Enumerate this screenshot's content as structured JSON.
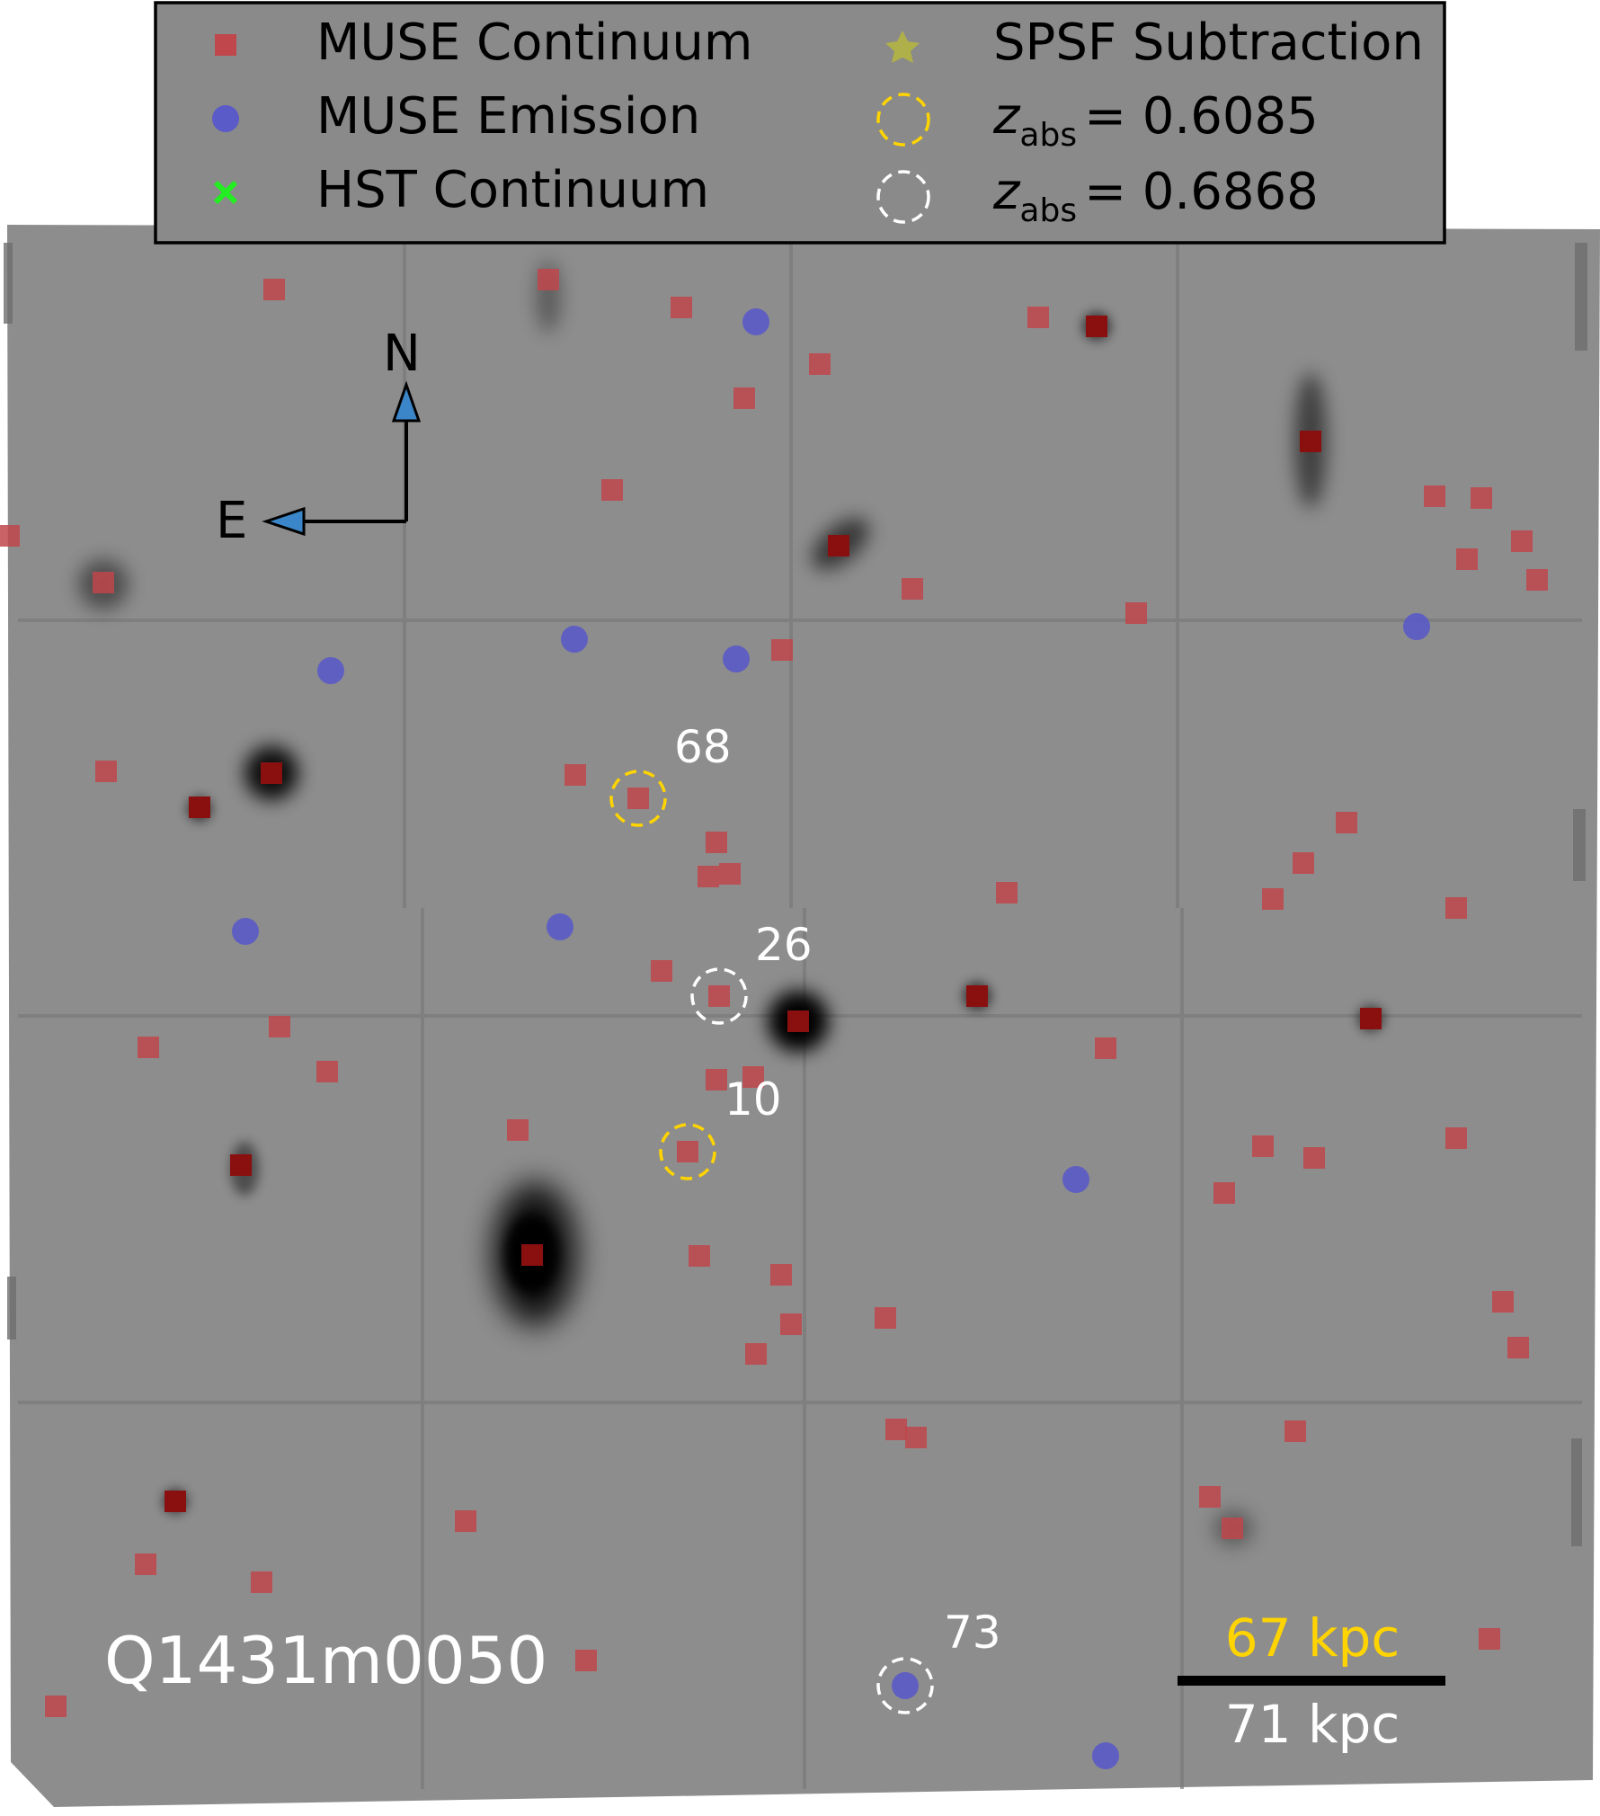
{
  "field_name": "Q1431m0050",
  "legend": {
    "items": [
      {
        "label": "MUSE Continuum",
        "marker": "red-square-marker"
      },
      {
        "label": "MUSE Emission",
        "marker": "blue-circle-marker"
      },
      {
        "label": "HST Continuum",
        "marker": "green-x-marker"
      },
      {
        "label": "SPSF Subtraction",
        "marker": "olive-star-marker"
      },
      {
        "z_symbol": "z",
        "z_sub": "abs",
        "z_value": "= 0.6085",
        "marker": "yellow-dashed-circle"
      },
      {
        "z_symbol": "z",
        "z_sub": "abs",
        "z_value": "= 0.6868",
        "marker": "white-dashed-circle"
      }
    ]
  },
  "compass": {
    "north": "N",
    "east": "E"
  },
  "scale_bar": {
    "top_label": "67 kpc",
    "bottom_label": "71 kpc"
  },
  "annotations": [
    "68",
    "26",
    "10",
    "73"
  ],
  "colors": {
    "background": "#8c8c8c",
    "legend_bg": "#8a8a8a",
    "muse_continuum": "#c0474b",
    "muse_emission": "#5a5ac8",
    "hst_continuum": "#22ee22",
    "spsf": "#b0b04a",
    "z1": "#ffd400",
    "z2": "#ffffff",
    "arrow": "#3a86c8"
  }
}
